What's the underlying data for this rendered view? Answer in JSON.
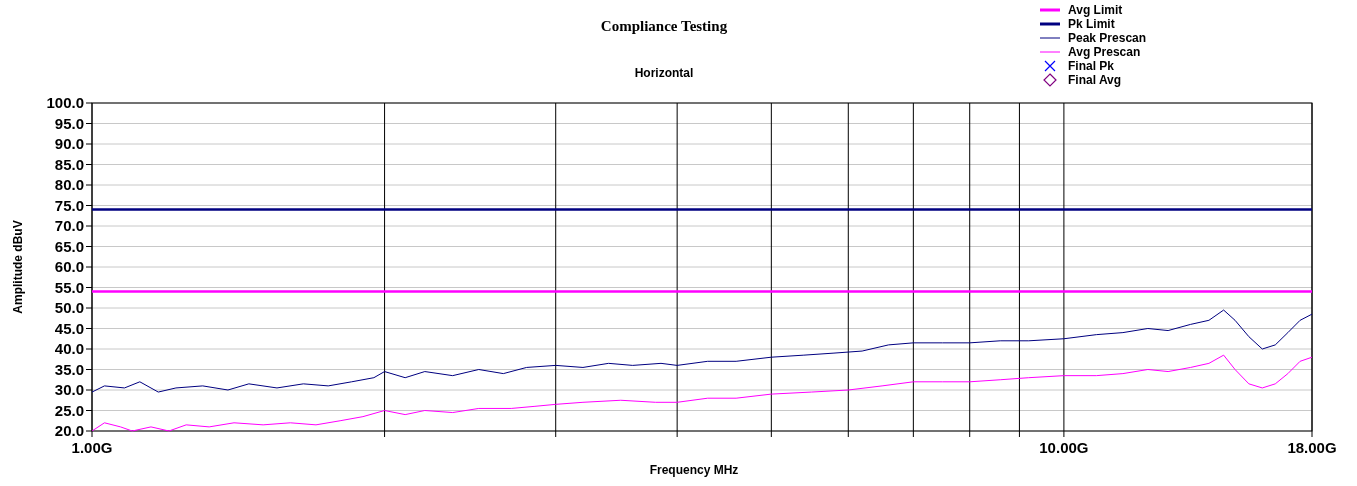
{
  "chart_data": {
    "type": "line",
    "title": "Compliance Testing",
    "subtitle": "Horizontal",
    "xlabel": "Frequency MHz",
    "ylabel": "Amplitude dBuV",
    "log": "x",
    "grid": true,
    "legend": "top right",
    "line_style": "solid",
    "marker": "none",
    "xlim": [
      1,
      18
    ],
    "xticks": [
      {
        "value": 1,
        "label": "1.00G"
      },
      {
        "value": 2,
        "label": null
      },
      {
        "value": 3,
        "label": null
      },
      {
        "value": 4,
        "label": null
      },
      {
        "value": 5,
        "label": null
      },
      {
        "value": 6,
        "label": null
      },
      {
        "value": 7,
        "label": null
      },
      {
        "value": 8,
        "label": null
      },
      {
        "value": 9,
        "label": null
      },
      {
        "value": 10,
        "label": "10.00G"
      },
      {
        "value": 18,
        "label": "18.00G"
      }
    ],
    "ylim": [
      20,
      100
    ],
    "yticks": [
      {
        "value": 20,
        "label": "20.0"
      },
      {
        "value": 25,
        "label": "25.0"
      },
      {
        "value": 30,
        "label": "30.0"
      },
      {
        "value": 35,
        "label": "35.0"
      },
      {
        "value": 40,
        "label": "40.0"
      },
      {
        "value": 45,
        "label": "45.0"
      },
      {
        "value": 50,
        "label": "50.0"
      },
      {
        "value": 55,
        "label": "55.0"
      },
      {
        "value": 60,
        "label": "60.0"
      },
      {
        "value": 65,
        "label": "65.0"
      },
      {
        "value": 70,
        "label": "70.0"
      },
      {
        "value": 75,
        "label": "75.0"
      },
      {
        "value": 80,
        "label": "80.0"
      },
      {
        "value": 85,
        "label": "85.0"
      },
      {
        "value": 90,
        "label": "90.0"
      },
      {
        "value": 95,
        "label": "95.0"
      },
      {
        "value": 100,
        "label": "100.0"
      }
    ],
    "series": [
      {
        "name": "Avg Limit",
        "color": "#ff00ff",
        "x": [
          1,
          18
        ],
        "values": [
          54,
          54
        ]
      },
      {
        "name": "Pk Limit",
        "color": "#000080",
        "x": [
          1,
          18
        ],
        "values": [
          74,
          74
        ]
      },
      {
        "name": "Peak Prescan",
        "color": "#000080",
        "x": [
          1,
          1.03,
          1.08,
          1.12,
          1.17,
          1.22,
          1.3,
          1.38,
          1.45,
          1.55,
          1.65,
          1.75,
          1.85,
          1.95,
          2,
          2.1,
          2.2,
          2.35,
          2.5,
          2.65,
          2.8,
          3,
          3.2,
          3.4,
          3.6,
          3.85,
          4,
          4.3,
          4.6,
          5,
          5.4,
          5.8,
          6.2,
          6.6,
          7,
          7.5,
          8,
          8.6,
          9.2,
          10,
          10.8,
          11.5,
          12.2,
          12.8,
          13.5,
          14.1,
          14.6,
          15,
          15.5,
          16,
          16.5,
          17,
          17.5,
          18
        ],
        "values": [
          29.5,
          31,
          30.5,
          32,
          29.5,
          30.5,
          31,
          30,
          31.5,
          30.5,
          31.5,
          31,
          32,
          33,
          34.5,
          33,
          34.5,
          33.5,
          35,
          34,
          35.5,
          36,
          35.5,
          36.5,
          36,
          36.5,
          36,
          37,
          37,
          38,
          38.5,
          39,
          39.5,
          41,
          41.5,
          41.5,
          41.5,
          42,
          42,
          42.5,
          43.5,
          44,
          45,
          44.5,
          46,
          47,
          49.5,
          47,
          43,
          40,
          41,
          44,
          47,
          48.5
        ]
      },
      {
        "name": "Avg Prescan",
        "color": "#ff00ff",
        "x": [
          1,
          1.03,
          1.07,
          1.1,
          1.15,
          1.2,
          1.25,
          1.32,
          1.4,
          1.5,
          1.6,
          1.7,
          1.8,
          1.9,
          2,
          2.1,
          2.2,
          2.35,
          2.5,
          2.7,
          2.85,
          3,
          3.2,
          3.5,
          3.8,
          4,
          4.3,
          4.6,
          5,
          5.5,
          6,
          6.5,
          7,
          7.5,
          8,
          8.6,
          9.2,
          10,
          10.8,
          11.5,
          12.2,
          12.8,
          13.5,
          14.1,
          14.6,
          15,
          15.5,
          16,
          16.5,
          17,
          17.5,
          18
        ],
        "values": [
          20,
          22,
          21,
          20,
          21,
          20,
          21.5,
          21,
          22,
          21.5,
          22,
          21.5,
          22.5,
          23.5,
          25,
          24,
          25,
          24.5,
          25.5,
          25.5,
          26,
          26.5,
          27,
          27.5,
          27,
          27,
          28,
          28,
          29,
          29.5,
          30,
          31,
          32,
          32,
          32,
          32.5,
          33,
          33.5,
          33.5,
          34,
          35,
          34.5,
          35.5,
          36.5,
          38.5,
          35,
          31.5,
          30.5,
          31.5,
          34,
          37,
          38
        ]
      },
      {
        "name": "Final Pk",
        "type": "scatter",
        "marker": "cross",
        "color": "#0000ff"
      },
      {
        "name": "Final Avg",
        "type": "scatter",
        "marker": "diamond",
        "color": "#800080"
      }
    ]
  }
}
